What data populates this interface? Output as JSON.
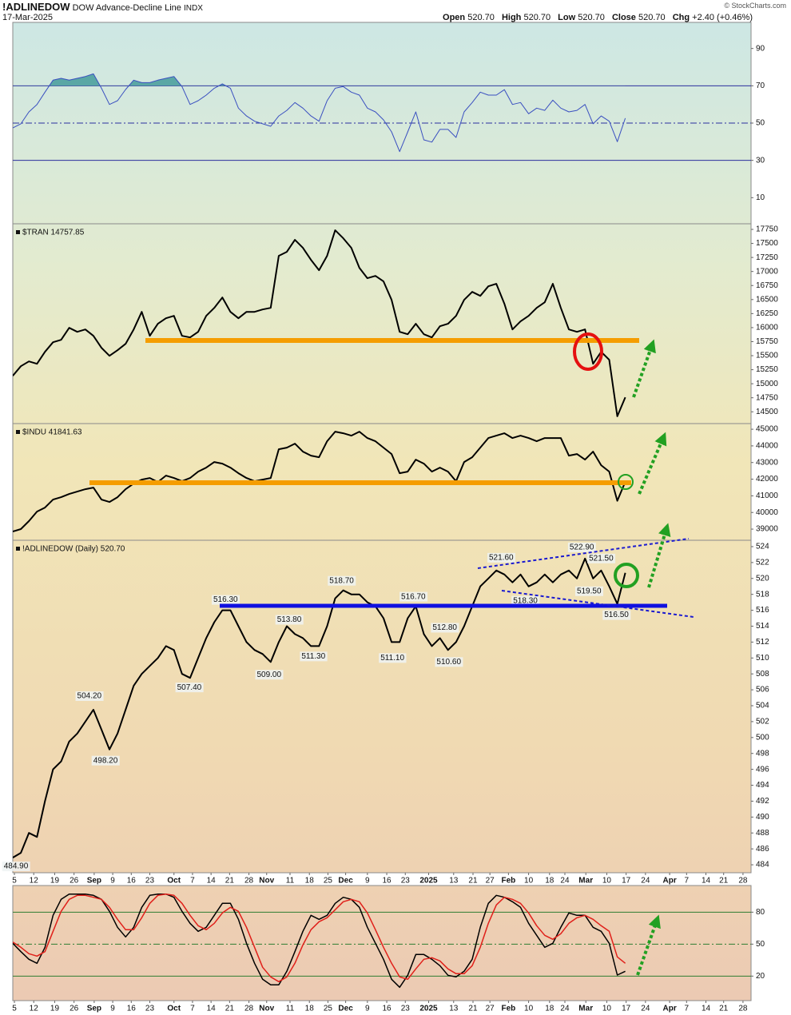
{
  "header": {
    "symbol": "!ADLINEDOW",
    "name": "DOW Advance-Decline Line",
    "exchange": "INDX",
    "date": "17-Mar-2025",
    "credit": "© StockCharts.com",
    "quote": [
      {
        "label": "Open",
        "value": "520.70"
      },
      {
        "label": "High",
        "value": "520.70"
      },
      {
        "label": "Low",
        "value": "520.70"
      },
      {
        "label": "Close",
        "value": "520.70"
      },
      {
        "label": "Chg",
        "value": "+2.40 (+0.46%)"
      }
    ]
  },
  "chart_data": [
    {
      "type": "line",
      "xlim": [
        0,
        91.6
      ],
      "ylim": [
        -4,
        104
      ],
      "yticks": [
        10,
        30,
        50,
        70,
        90
      ],
      "levels": [
        {
          "value": 70,
          "style": "solid",
          "color": "#2b2f9e",
          "fill": "#5aa7a5"
        },
        {
          "value": 50,
          "style": "dashdot",
          "color": "#2b2f9e"
        },
        {
          "value": 30,
          "style": "solid",
          "color": "#2b2f9e"
        }
      ],
      "series": [
        {
          "color": "#3a4fc0",
          "values": [
            47.4,
            49.6,
            56,
            60,
            66.6,
            73,
            74,
            73,
            74,
            75,
            76.4,
            68.7,
            60,
            62,
            68,
            73,
            71.7,
            71.7,
            73,
            74,
            75,
            69.6,
            60,
            62,
            65,
            68.7,
            71,
            68.7,
            58,
            53.8,
            51,
            49.6,
            48.3,
            53.8,
            56.8,
            61,
            58,
            53.8,
            51,
            62,
            68.7,
            69.6,
            66.6,
            65,
            58,
            56,
            51.7,
            45.3,
            34.7,
            45.3,
            56,
            41,
            39.8,
            46.6,
            46.6,
            42.3,
            56,
            61,
            66.6,
            65,
            65,
            67.9,
            60,
            61,
            55,
            58,
            56.8,
            62.3,
            58,
            56,
            56.8,
            60,
            49.6,
            53.8,
            51,
            40,
            52.6
          ]
        }
      ]
    },
    {
      "type": "line",
      "title": "$TRAN 14757.85",
      "xlim": [
        0,
        91.6
      ],
      "ylim": [
        14290,
        17850
      ],
      "yticks": [
        14500,
        14750,
        15000,
        15250,
        15500,
        15750,
        16000,
        16250,
        16500,
        16750,
        17000,
        17250,
        17500,
        17750
      ],
      "series": [
        {
          "color": "#000000",
          "values": [
            15141,
            15312,
            15398,
            15355,
            15569,
            15740,
            15782,
            15996,
            15925,
            15968,
            15854,
            15640,
            15497,
            15597,
            15711,
            15968,
            16281,
            15854,
            16068,
            16167,
            16210,
            15854,
            15825,
            15925,
            16210,
            16352,
            16537,
            16281,
            16167,
            16281,
            16281,
            16324,
            16352,
            17279,
            17350,
            17564,
            17422,
            17208,
            17022,
            17279,
            17735,
            17592,
            17422,
            17065,
            16880,
            16922,
            16823,
            16495,
            15925,
            15882,
            16068,
            15882,
            15825,
            16025,
            16068,
            16210,
            16495,
            16637,
            16566,
            16737,
            16780,
            16424,
            15968,
            16111,
            16210,
            16352,
            16452,
            16780,
            16352,
            15968,
            15925,
            15968,
            15355,
            15569,
            15426,
            14420,
            14758
          ]
        }
      ]
    },
    {
      "type": "line",
      "title": "$INDU 41841.63",
      "xlim": [
        0,
        91.6
      ],
      "ylim": [
        38330,
        45340
      ],
      "yticks": [
        39000,
        40000,
        41000,
        42000,
        43000,
        44000,
        45000
      ],
      "series": [
        {
          "color": "#000000",
          "values": [
            38856,
            39000,
            39480,
            40056,
            40296,
            40776,
            40920,
            41112,
            41256,
            41400,
            41496,
            40776,
            40632,
            40920,
            41400,
            41736,
            41976,
            42072,
            41832,
            42216,
            42072,
            41880,
            42072,
            42456,
            42696,
            43032,
            42936,
            42696,
            42360,
            42072,
            41880,
            41976,
            42072,
            43800,
            43896,
            44136,
            43656,
            43416,
            43320,
            44280,
            44856,
            44760,
            44616,
            44856,
            44472,
            44280,
            43896,
            43512,
            42360,
            42456,
            43176,
            42936,
            42456,
            42696,
            42456,
            41880,
            43032,
            43320,
            43896,
            44472,
            44616,
            44760,
            44472,
            44616,
            44472,
            44280,
            44472,
            44472,
            44472,
            43416,
            43512,
            43176,
            43656,
            42840,
            42456,
            40700,
            41842
          ]
        }
      ]
    },
    {
      "type": "line",
      "title": "!ADLINEDOW (Daily) 520.70",
      "xlim": [
        0,
        91.6
      ],
      "ylim": [
        483,
        524.8
      ],
      "yticks": [
        484,
        486,
        488,
        490,
        492,
        494,
        496,
        498,
        500,
        502,
        504,
        506,
        508,
        510,
        512,
        514,
        516,
        518,
        520,
        522,
        524
      ],
      "xticks": [
        {
          "value": 0.2,
          "label": "5"
        },
        {
          "value": 2.6,
          "label": "12"
        },
        {
          "value": 5.2,
          "label": "19"
        },
        {
          "value": 7.6,
          "label": "26"
        },
        {
          "value": 10.1,
          "label": "Sep"
        },
        {
          "value": 12.4,
          "label": "9"
        },
        {
          "value": 14.7,
          "label": "16"
        },
        {
          "value": 17.0,
          "label": "23"
        },
        {
          "value": 20.0,
          "label": "Oct"
        },
        {
          "value": 22.3,
          "label": "7"
        },
        {
          "value": 24.6,
          "label": "14"
        },
        {
          "value": 26.9,
          "label": "21"
        },
        {
          "value": 29.3,
          "label": "28"
        },
        {
          "value": 31.5,
          "label": "Nov"
        },
        {
          "value": 34.4,
          "label": "11"
        },
        {
          "value": 36.8,
          "label": "18"
        },
        {
          "value": 39.1,
          "label": "25"
        },
        {
          "value": 41.3,
          "label": "Dec"
        },
        {
          "value": 44.0,
          "label": "9"
        },
        {
          "value": 46.4,
          "label": "16"
        },
        {
          "value": 48.7,
          "label": "23"
        },
        {
          "value": 51.6,
          "label": "2025"
        },
        {
          "value": 54.7,
          "label": "13"
        },
        {
          "value": 57.1,
          "label": "21"
        },
        {
          "value": 59.2,
          "label": "27"
        },
        {
          "value": 61.5,
          "label": "Feb"
        },
        {
          "value": 64.0,
          "label": "10"
        },
        {
          "value": 66.6,
          "label": "18"
        },
        {
          "value": 68.5,
          "label": "24"
        },
        {
          "value": 71.1,
          "label": "Mar"
        },
        {
          "value": 73.7,
          "label": "10"
        },
        {
          "value": 76.1,
          "label": "17"
        },
        {
          "value": 78.5,
          "label": "24"
        },
        {
          "value": 81.5,
          "label": "Apr"
        },
        {
          "value": 83.6,
          "label": "7"
        },
        {
          "value": 86.0,
          "label": "14"
        },
        {
          "value": 88.2,
          "label": "21"
        },
        {
          "value": 90.6,
          "label": "28"
        }
      ],
      "series": [
        {
          "color": "#000000",
          "values": [
            484.9,
            485.5,
            488,
            487.5,
            492,
            496,
            497,
            499.5,
            500.5,
            502,
            503.5,
            501,
            498.5,
            500.5,
            503.5,
            506.5,
            508,
            509,
            510,
            511.5,
            511,
            508,
            507.5,
            510,
            512.5,
            514.5,
            516,
            516,
            514,
            512,
            511,
            510.5,
            509.5,
            512,
            514,
            513,
            512.5,
            511.5,
            511.5,
            514,
            517.5,
            518.5,
            518,
            518,
            517,
            516.5,
            515,
            512,
            512,
            515,
            516.5,
            513,
            511.5,
            512.5,
            511,
            512,
            514,
            516.5,
            519,
            520,
            521,
            520.5,
            519.5,
            520.5,
            519,
            519.5,
            520.5,
            519.5,
            520.5,
            521,
            520,
            522.5,
            520,
            521,
            519,
            516.8,
            520.7
          ]
        }
      ],
      "annotations": [
        {
          "x": 0.1,
          "value": 484.9,
          "label": "484.90",
          "position": "below"
        },
        {
          "x": 9.5,
          "value": 504.2,
          "label": "504.20",
          "position": "above"
        },
        {
          "x": 11.5,
          "value": 498.2,
          "label": "498.20",
          "position": "below"
        },
        {
          "x": 21.9,
          "value": 507.4,
          "label": "507.40",
          "position": "below"
        },
        {
          "x": 26.4,
          "value": 516.3,
          "label": "516.30",
          "position": "above"
        },
        {
          "x": 31.8,
          "value": 509.0,
          "label": "509.00",
          "position": "below"
        },
        {
          "x": 34.3,
          "value": 513.8,
          "label": "513.80",
          "position": "above"
        },
        {
          "x": 37.3,
          "value": 511.3,
          "label": "511.30",
          "position": "below"
        },
        {
          "x": 40.8,
          "value": 518.7,
          "label": "518.70",
          "position": "above"
        },
        {
          "x": 47.1,
          "value": 511.1,
          "label": "511.10",
          "position": "below"
        },
        {
          "x": 49.7,
          "value": 516.7,
          "label": "516.70",
          "position": "above"
        },
        {
          "x": 53.6,
          "value": 512.8,
          "label": "512.80",
          "position": "above"
        },
        {
          "x": 54.1,
          "value": 510.6,
          "label": "510.60",
          "position": "below"
        },
        {
          "x": 60.6,
          "value": 521.6,
          "label": "521.60",
          "position": "above"
        },
        {
          "x": 63.6,
          "value": 518.3,
          "label": "518.30",
          "position": "below"
        },
        {
          "x": 70.6,
          "value": 522.9,
          "label": "522.90",
          "position": "above"
        },
        {
          "x": 71.5,
          "value": 519.5,
          "label": "519.50",
          "position": "below"
        },
        {
          "x": 73.0,
          "value": 521.5,
          "label": "521.50",
          "position": "above"
        },
        {
          "x": 74.9,
          "value": 516.5,
          "label": "516.50",
          "position": "below"
        }
      ]
    },
    {
      "type": "line",
      "xlim": [
        0,
        91.6
      ],
      "ylim": [
        -3,
        105
      ],
      "yticks": [
        20,
        50,
        80
      ],
      "levels": [
        {
          "value": 80,
          "style": "solid",
          "color": "#2e7d32"
        },
        {
          "value": 50,
          "style": "dashdot",
          "color": "#2e7d32"
        },
        {
          "value": 20,
          "style": "solid",
          "color": "#2e7d32"
        }
      ],
      "xticks": [
        {
          "value": 0.2,
          "label": "5"
        },
        {
          "value": 2.6,
          "label": "12"
        },
        {
          "value": 5.2,
          "label": "19"
        },
        {
          "value": 7.6,
          "label": "26"
        },
        {
          "value": 10.1,
          "label": "Sep"
        },
        {
          "value": 12.4,
          "label": "9"
        },
        {
          "value": 14.7,
          "label": "16"
        },
        {
          "value": 17.0,
          "label": "23"
        },
        {
          "value": 20.0,
          "label": "Oct"
        },
        {
          "value": 22.3,
          "label": "7"
        },
        {
          "value": 24.6,
          "label": "14"
        },
        {
          "value": 26.9,
          "label": "21"
        },
        {
          "value": 29.3,
          "label": "28"
        },
        {
          "value": 31.5,
          "label": "Nov"
        },
        {
          "value": 34.4,
          "label": "11"
        },
        {
          "value": 36.8,
          "label": "18"
        },
        {
          "value": 39.1,
          "label": "25"
        },
        {
          "value": 41.3,
          "label": "Dec"
        },
        {
          "value": 44.0,
          "label": "9"
        },
        {
          "value": 46.4,
          "label": "16"
        },
        {
          "value": 48.7,
          "label": "23"
        },
        {
          "value": 51.6,
          "label": "2025"
        },
        {
          "value": 54.7,
          "label": "13"
        },
        {
          "value": 57.1,
          "label": "21"
        },
        {
          "value": 59.2,
          "label": "27"
        },
        {
          "value": 61.5,
          "label": "Feb"
        },
        {
          "value": 64.0,
          "label": "10"
        },
        {
          "value": 66.6,
          "label": "18"
        },
        {
          "value": 68.5,
          "label": "24"
        },
        {
          "value": 71.1,
          "label": "Mar"
        },
        {
          "value": 73.7,
          "label": "10"
        },
        {
          "value": 76.1,
          "label": "17"
        },
        {
          "value": 78.5,
          "label": "24"
        },
        {
          "value": 81.5,
          "label": "Apr"
        },
        {
          "value": 83.6,
          "label": "7"
        },
        {
          "value": 86.0,
          "label": "14"
        },
        {
          "value": 88.2,
          "label": "21"
        },
        {
          "value": 90.6,
          "label": "28"
        }
      ],
      "series": [
        {
          "color": "#000000",
          "values": [
            50.75,
            43,
            35.75,
            32,
            47,
            77,
            92,
            97,
            97,
            97,
            95.75,
            92,
            80.75,
            65.75,
            56.75,
            65.75,
            84.5,
            95.75,
            97,
            97,
            94,
            80.75,
            69.5,
            62,
            65.75,
            77,
            88.25,
            88.25,
            73.25,
            50.75,
            32,
            17,
            11.75,
            11.75,
            24.5,
            43,
            62,
            77,
            73.25,
            77,
            88.25,
            94,
            92,
            84.5,
            65.75,
            50.75,
            35.75,
            17,
            9.5,
            20.75,
            40.25,
            40.25,
            35.75,
            29.75,
            20.75,
            19.25,
            24.5,
            35.75,
            65.75,
            88.25,
            95.75,
            94,
            89.75,
            84.5,
            69.5,
            58.25,
            47,
            50.75,
            65.75,
            79.25,
            77,
            77,
            65.75,
            62,
            50.75,
            21,
            24.5
          ]
        },
        {
          "color": "#e0201a",
          "values": [
            52,
            47,
            41,
            38.75,
            43,
            62,
            80.75,
            92,
            95.75,
            95.75,
            94,
            92,
            84.5,
            73.25,
            63.5,
            63.5,
            74.75,
            88.25,
            95.75,
            97,
            95.75,
            88.25,
            77,
            67.25,
            63.5,
            69.5,
            79.25,
            84.5,
            80.75,
            65.75,
            47,
            28.25,
            19.25,
            14.75,
            19.25,
            32,
            49.25,
            63.5,
            71,
            74.75,
            82.25,
            89.75,
            92,
            89.75,
            79.25,
            63.5,
            47,
            32,
            19.25,
            17,
            26.75,
            35.75,
            37.25,
            34.25,
            26.75,
            22.25,
            22.25,
            29.75,
            47,
            69.5,
            86.75,
            94,
            92,
            88.25,
            79.25,
            67.25,
            58.25,
            54.5,
            59.75,
            69.5,
            74.75,
            77,
            73.25,
            67.25,
            62,
            38,
            32
          ]
        }
      ]
    }
  ]
}
